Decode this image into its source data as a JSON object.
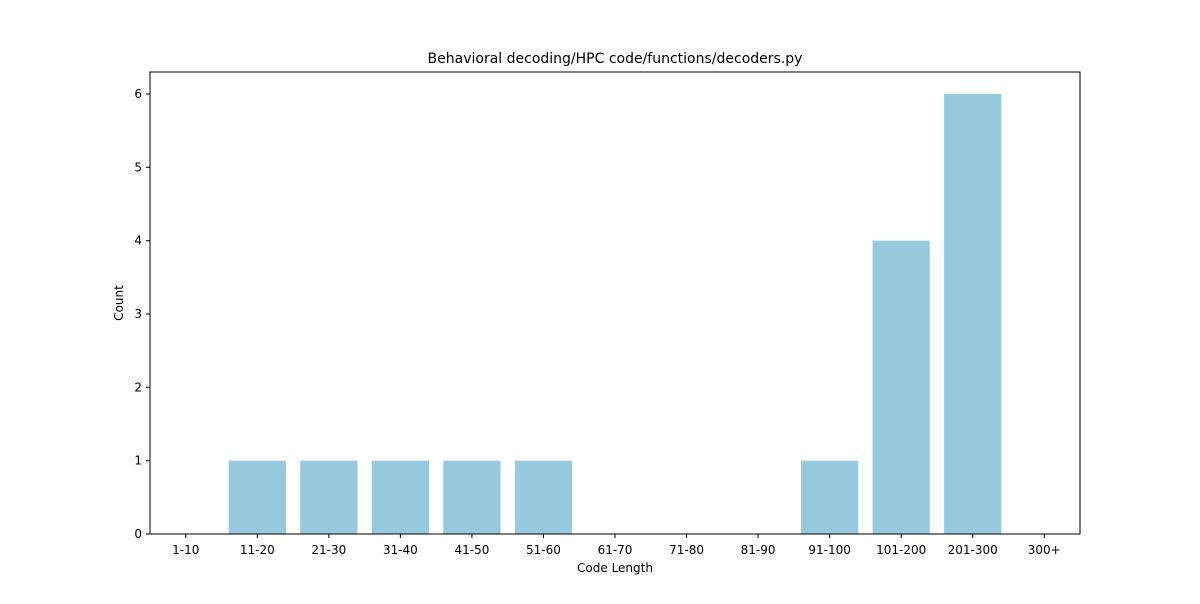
{
  "chart_data": {
    "type": "bar",
    "title": "Behavioral decoding/HPC code/functions/decoders.py",
    "xlabel": "Code Length",
    "ylabel": "Count",
    "categories": [
      "1-10",
      "11-20",
      "21-30",
      "31-40",
      "41-50",
      "51-60",
      "61-70",
      "71-80",
      "81-90",
      "91-100",
      "101-200",
      "201-300",
      "300+"
    ],
    "values": [
      0,
      1,
      1,
      1,
      1,
      1,
      0,
      0,
      0,
      1,
      4,
      6,
      0
    ],
    "ylim": [
      0,
      6.3
    ],
    "yticks": [
      0,
      1,
      2,
      3,
      4,
      5,
      6
    ],
    "bar_color": "#96c9de",
    "grid": false,
    "legend": "none"
  }
}
